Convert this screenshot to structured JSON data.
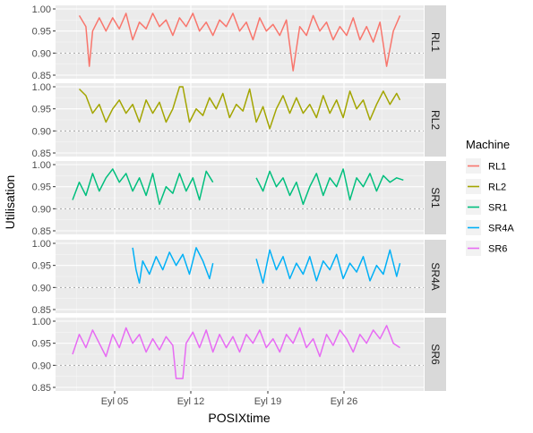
{
  "chart_data": {
    "type": "line",
    "xlabel": "POSIXtime",
    "ylabel": "Utilisation",
    "x_ticks": [
      "Eyl 05",
      "Eyl 12",
      "Eyl 19",
      "Eyl 26"
    ],
    "y_ticks": [
      "0.85",
      "0.90",
      "0.95",
      "1.00"
    ],
    "ylim": [
      0.85,
      1.0
    ],
    "reference_line": 0.9,
    "grid": true,
    "legend": {
      "title": "Machine",
      "position": "right"
    },
    "facets": [
      {
        "name": "RL1",
        "color": "#F8766D",
        "segments": [
          {
            "start": 0.02,
            "end": 0.98,
            "points": [
              [
                0.02,
                0.985
              ],
              [
                0.04,
                0.96
              ],
              [
                0.05,
                0.87
              ],
              [
                0.06,
                0.95
              ],
              [
                0.08,
                0.98
              ],
              [
                0.1,
                0.95
              ],
              [
                0.12,
                0.98
              ],
              [
                0.14,
                0.955
              ],
              [
                0.16,
                0.99
              ],
              [
                0.18,
                0.93
              ],
              [
                0.2,
                0.97
              ],
              [
                0.22,
                0.955
              ],
              [
                0.24,
                0.99
              ],
              [
                0.26,
                0.96
              ],
              [
                0.28,
                0.975
              ],
              [
                0.3,
                0.94
              ],
              [
                0.32,
                0.98
              ],
              [
                0.34,
                0.96
              ],
              [
                0.36,
                0.99
              ],
              [
                0.38,
                0.95
              ],
              [
                0.4,
                0.97
              ],
              [
                0.42,
                0.94
              ],
              [
                0.44,
                0.975
              ],
              [
                0.46,
                0.96
              ],
              [
                0.48,
                0.99
              ],
              [
                0.5,
                0.95
              ],
              [
                0.52,
                0.97
              ],
              [
                0.54,
                0.93
              ],
              [
                0.56,
                0.98
              ],
              [
                0.58,
                0.95
              ],
              [
                0.6,
                0.965
              ],
              [
                0.62,
                0.94
              ],
              [
                0.64,
                0.975
              ],
              [
                0.66,
                0.86
              ],
              [
                0.68,
                0.96
              ],
              [
                0.7,
                0.94
              ],
              [
                0.72,
                0.985
              ],
              [
                0.74,
                0.95
              ],
              [
                0.76,
                0.97
              ],
              [
                0.78,
                0.93
              ],
              [
                0.8,
                0.96
              ],
              [
                0.82,
                0.94
              ],
              [
                0.84,
                0.98
              ],
              [
                0.86,
                0.93
              ],
              [
                0.88,
                0.96
              ],
              [
                0.9,
                0.925
              ],
              [
                0.92,
                0.97
              ],
              [
                0.94,
                0.87
              ],
              [
                0.96,
                0.95
              ],
              [
                0.98,
                0.985
              ]
            ]
          }
        ]
      },
      {
        "name": "RL2",
        "color": "#A3A500",
        "segments": [
          {
            "start": 0.02,
            "end": 0.98,
            "points": [
              [
                0.02,
                0.995
              ],
              [
                0.04,
                0.98
              ],
              [
                0.06,
                0.94
              ],
              [
                0.08,
                0.96
              ],
              [
                0.1,
                0.92
              ],
              [
                0.12,
                0.95
              ],
              [
                0.14,
                0.97
              ],
              [
                0.16,
                0.94
              ],
              [
                0.18,
                0.96
              ],
              [
                0.2,
                0.92
              ],
              [
                0.22,
                0.97
              ],
              [
                0.24,
                0.94
              ],
              [
                0.26,
                0.965
              ],
              [
                0.28,
                0.92
              ],
              [
                0.3,
                0.95
              ],
              [
                0.32,
                1.0
              ],
              [
                0.33,
                1.0
              ],
              [
                0.35,
                0.92
              ],
              [
                0.37,
                0.95
              ],
              [
                0.39,
                0.935
              ],
              [
                0.41,
                0.975
              ],
              [
                0.43,
                0.95
              ],
              [
                0.45,
                0.985
              ],
              [
                0.47,
                0.93
              ],
              [
                0.49,
                0.96
              ],
              [
                0.51,
                0.945
              ],
              [
                0.53,
                0.995
              ],
              [
                0.55,
                0.92
              ],
              [
                0.57,
                0.955
              ],
              [
                0.59,
                0.905
              ],
              [
                0.61,
                0.95
              ],
              [
                0.63,
                0.98
              ],
              [
                0.65,
                0.94
              ],
              [
                0.67,
                0.975
              ],
              [
                0.69,
                0.94
              ],
              [
                0.71,
                0.96
              ],
              [
                0.73,
                0.93
              ],
              [
                0.75,
                0.98
              ],
              [
                0.77,
                0.94
              ],
              [
                0.79,
                0.97
              ],
              [
                0.81,
                0.93
              ],
              [
                0.83,
                0.99
              ],
              [
                0.85,
                0.95
              ],
              [
                0.87,
                0.97
              ],
              [
                0.89,
                0.925
              ],
              [
                0.91,
                0.96
              ],
              [
                0.93,
                0.99
              ],
              [
                0.95,
                0.96
              ],
              [
                0.97,
                0.985
              ],
              [
                0.98,
                0.97
              ]
            ]
          }
        ]
      },
      {
        "name": "SR1",
        "color": "#00BF7D",
        "segments": [
          {
            "start": 0.0,
            "end": 0.42,
            "points": [
              [
                0.0,
                0.92
              ],
              [
                0.02,
                0.96
              ],
              [
                0.04,
                0.93
              ],
              [
                0.06,
                0.98
              ],
              [
                0.08,
                0.94
              ],
              [
                0.1,
                0.97
              ],
              [
                0.12,
                0.99
              ],
              [
                0.14,
                0.96
              ],
              [
                0.16,
                0.98
              ],
              [
                0.18,
                0.94
              ],
              [
                0.2,
                0.97
              ],
              [
                0.22,
                0.93
              ],
              [
                0.24,
                0.98
              ],
              [
                0.26,
                0.91
              ],
              [
                0.28,
                0.95
              ],
              [
                0.3,
                0.935
              ],
              [
                0.32,
                0.98
              ],
              [
                0.34,
                0.94
              ],
              [
                0.36,
                0.97
              ],
              [
                0.38,
                0.92
              ],
              [
                0.4,
                0.985
              ],
              [
                0.42,
                0.96
              ]
            ]
          },
          {
            "start": 0.55,
            "end": 0.99,
            "points": [
              [
                0.55,
                0.97
              ],
              [
                0.57,
                0.94
              ],
              [
                0.59,
                0.985
              ],
              [
                0.61,
                0.95
              ],
              [
                0.63,
                0.97
              ],
              [
                0.65,
                0.93
              ],
              [
                0.67,
                0.96
              ],
              [
                0.69,
                0.91
              ],
              [
                0.71,
                0.95
              ],
              [
                0.73,
                0.98
              ],
              [
                0.75,
                0.93
              ],
              [
                0.77,
                0.97
              ],
              [
                0.79,
                0.95
              ],
              [
                0.81,
                0.99
              ],
              [
                0.83,
                0.92
              ],
              [
                0.85,
                0.97
              ],
              [
                0.87,
                0.95
              ],
              [
                0.89,
                0.98
              ],
              [
                0.91,
                0.94
              ],
              [
                0.93,
                0.975
              ],
              [
                0.95,
                0.96
              ],
              [
                0.97,
                0.97
              ],
              [
                0.99,
                0.965
              ]
            ]
          }
        ]
      },
      {
        "name": "SR4A",
        "color": "#00B0F6",
        "segments": [
          {
            "start": 0.18,
            "end": 0.42,
            "points": [
              [
                0.18,
                0.99
              ],
              [
                0.19,
                0.94
              ],
              [
                0.2,
                0.91
              ],
              [
                0.21,
                0.96
              ],
              [
                0.23,
                0.93
              ],
              [
                0.25,
                0.97
              ],
              [
                0.27,
                0.94
              ],
              [
                0.29,
                0.98
              ],
              [
                0.31,
                0.95
              ],
              [
                0.33,
                0.975
              ],
              [
                0.35,
                0.93
              ],
              [
                0.37,
                0.99
              ],
              [
                0.39,
                0.96
              ],
              [
                0.41,
                0.92
              ],
              [
                0.42,
                0.955
              ]
            ]
          },
          {
            "start": 0.55,
            "end": 0.98,
            "points": [
              [
                0.55,
                0.965
              ],
              [
                0.57,
                0.91
              ],
              [
                0.59,
                0.985
              ],
              [
                0.61,
                0.94
              ],
              [
                0.63,
                0.97
              ],
              [
                0.65,
                0.92
              ],
              [
                0.67,
                0.955
              ],
              [
                0.69,
                0.93
              ],
              [
                0.71,
                0.97
              ],
              [
                0.73,
                0.915
              ],
              [
                0.75,
                0.96
              ],
              [
                0.77,
                0.94
              ],
              [
                0.79,
                0.975
              ],
              [
                0.81,
                0.92
              ],
              [
                0.83,
                0.955
              ],
              [
                0.85,
                0.935
              ],
              [
                0.87,
                0.97
              ],
              [
                0.89,
                0.915
              ],
              [
                0.91,
                0.95
              ],
              [
                0.93,
                0.93
              ],
              [
                0.95,
                0.985
              ],
              [
                0.97,
                0.925
              ],
              [
                0.98,
                0.955
              ]
            ]
          }
        ]
      },
      {
        "name": "SR6",
        "color": "#E76BF3",
        "segments": [
          {
            "start": 0.0,
            "end": 0.98,
            "points": [
              [
                0.0,
                0.925
              ],
              [
                0.02,
                0.97
              ],
              [
                0.04,
                0.94
              ],
              [
                0.06,
                0.98
              ],
              [
                0.08,
                0.95
              ],
              [
                0.1,
                0.92
              ],
              [
                0.12,
                0.97
              ],
              [
                0.14,
                0.94
              ],
              [
                0.16,
                0.985
              ],
              [
                0.18,
                0.95
              ],
              [
                0.2,
                0.97
              ],
              [
                0.22,
                0.93
              ],
              [
                0.24,
                0.96
              ],
              [
                0.26,
                0.935
              ],
              [
                0.28,
                0.965
              ],
              [
                0.3,
                0.945
              ],
              [
                0.31,
                0.87
              ],
              [
                0.33,
                0.87
              ],
              [
                0.34,
                0.95
              ],
              [
                0.36,
                0.975
              ],
              [
                0.38,
                0.94
              ],
              [
                0.4,
                0.98
              ],
              [
                0.42,
                0.93
              ],
              [
                0.44,
                0.97
              ],
              [
                0.46,
                0.94
              ],
              [
                0.48,
                0.965
              ],
              [
                0.5,
                0.93
              ],
              [
                0.52,
                0.97
              ],
              [
                0.54,
                0.95
              ],
              [
                0.56,
                0.98
              ],
              [
                0.58,
                0.94
              ],
              [
                0.6,
                0.96
              ],
              [
                0.62,
                0.93
              ],
              [
                0.64,
                0.97
              ],
              [
                0.66,
                0.95
              ],
              [
                0.68,
                0.985
              ],
              [
                0.7,
                0.94
              ],
              [
                0.72,
                0.96
              ],
              [
                0.74,
                0.92
              ],
              [
                0.76,
                0.97
              ],
              [
                0.78,
                0.945
              ],
              [
                0.8,
                0.98
              ],
              [
                0.82,
                0.96
              ],
              [
                0.84,
                0.93
              ],
              [
                0.86,
                0.97
              ],
              [
                0.88,
                0.95
              ],
              [
                0.9,
                0.98
              ],
              [
                0.92,
                0.96
              ],
              [
                0.94,
                0.99
              ],
              [
                0.96,
                0.95
              ],
              [
                0.98,
                0.94
              ]
            ]
          }
        ]
      }
    ]
  }
}
